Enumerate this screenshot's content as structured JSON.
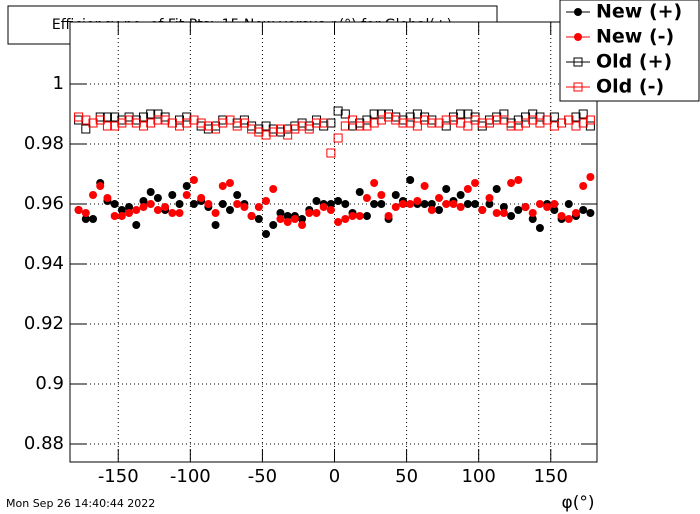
{
  "chart_data": {
    "type": "scatter",
    "title": "Efficiency no. of Fit Pts>15 New versus φ(°) for Global(+)",
    "x_label": "φ(°)",
    "timestamp": "Mon Sep 26 14:40:44 2022",
    "x": [
      -177.5,
      -172.5,
      -167.5,
      -162.5,
      -157.5,
      -152.5,
      -147.5,
      -142.5,
      -137.5,
      -132.5,
      -127.5,
      -122.5,
      -117.5,
      -112.5,
      -107.5,
      -102.5,
      -97.5,
      -92.5,
      -87.5,
      -82.5,
      -77.5,
      -72.5,
      -67.5,
      -62.5,
      -57.5,
      -52.5,
      -47.5,
      -42.5,
      -37.5,
      -32.5,
      -27.5,
      -22.5,
      -17.5,
      -12.5,
      -7.5,
      -2.5,
      2.5,
      7.5,
      12.5,
      17.5,
      22.5,
      27.5,
      32.5,
      37.5,
      42.5,
      47.5,
      52.5,
      57.5,
      62.5,
      67.5,
      72.5,
      77.5,
      82.5,
      87.5,
      92.5,
      97.5,
      102.5,
      107.5,
      112.5,
      117.5,
      122.5,
      127.5,
      132.5,
      137.5,
      142.5,
      147.5,
      152.5,
      157.5,
      162.5,
      167.5,
      172.5,
      177.5
    ],
    "series": [
      {
        "name": "New (+)",
        "color": "#000000",
        "marker": "circle",
        "values": [
          0.958,
          0.955,
          0.955,
          0.967,
          0.961,
          0.96,
          0.958,
          0.959,
          0.953,
          0.961,
          0.964,
          0.962,
          0.958,
          0.963,
          0.96,
          0.966,
          0.96,
          0.961,
          0.959,
          0.953,
          0.96,
          0.958,
          0.963,
          0.96,
          0.956,
          0.955,
          0.95,
          0.953,
          0.957,
          0.956,
          0.956,
          0.955,
          0.958,
          0.961,
          0.96,
          0.96,
          0.961,
          0.96,
          0.957,
          0.964,
          0.956,
          0.96,
          0.96,
          0.955,
          0.963,
          0.961,
          0.968,
          0.96,
          0.96,
          0.96,
          0.958,
          0.965,
          0.961,
          0.963,
          0.96,
          0.96,
          0.958,
          0.96,
          0.965,
          0.959,
          0.956,
          0.958,
          0.959,
          0.955,
          0.952,
          0.96,
          0.958,
          0.955,
          0.96,
          0.956,
          0.958,
          0.957
        ]
      },
      {
        "name": "New (-)",
        "color": "#ff0000",
        "marker": "circle",
        "values": [
          0.958,
          0.957,
          0.963,
          0.966,
          0.962,
          0.956,
          0.956,
          0.957,
          0.958,
          0.959,
          0.96,
          0.958,
          0.959,
          0.957,
          0.957,
          0.963,
          0.968,
          0.962,
          0.96,
          0.957,
          0.966,
          0.967,
          0.96,
          0.959,
          0.956,
          0.959,
          0.961,
          0.965,
          0.955,
          0.954,
          0.955,
          0.953,
          0.957,
          0.957,
          0.959,
          0.958,
          0.954,
          0.955,
          0.956,
          0.956,
          0.962,
          0.967,
          0.963,
          0.956,
          0.959,
          0.96,
          0.96,
          0.961,
          0.966,
          0.958,
          0.962,
          0.96,
          0.96,
          0.959,
          0.965,
          0.967,
          0.958,
          0.962,
          0.957,
          0.957,
          0.967,
          0.968,
          0.959,
          0.957,
          0.96,
          0.959,
          0.96,
          0.956,
          0.955,
          0.957,
          0.966,
          0.969
        ]
      },
      {
        "name": "Old (+)",
        "color": "#000000",
        "marker": "open-square",
        "values": [
          0.988,
          0.985,
          0.987,
          0.989,
          0.989,
          0.989,
          0.988,
          0.989,
          0.988,
          0.989,
          0.99,
          0.99,
          0.989,
          0.987,
          0.988,
          0.989,
          0.988,
          0.986,
          0.985,
          0.986,
          0.988,
          0.988,
          0.987,
          0.988,
          0.986,
          0.985,
          0.986,
          0.985,
          0.984,
          0.985,
          0.986,
          0.987,
          0.986,
          0.988,
          0.986,
          0.987,
          0.991,
          0.99,
          0.986,
          0.987,
          0.988,
          0.99,
          0.99,
          0.99,
          0.989,
          0.988,
          0.989,
          0.99,
          0.989,
          0.988,
          0.987,
          0.986,
          0.989,
          0.99,
          0.99,
          0.989,
          0.986,
          0.988,
          0.989,
          0.99,
          0.987,
          0.988,
          0.989,
          0.99,
          0.989,
          0.988,
          0.989,
          0.987,
          0.988,
          0.989,
          0.99,
          0.986
        ]
      },
      {
        "name": "Old (-)",
        "color": "#ff0000",
        "marker": "open-square",
        "values": [
          0.989,
          0.988,
          0.987,
          0.988,
          0.986,
          0.986,
          0.987,
          0.988,
          0.987,
          0.986,
          0.987,
          0.988,
          0.988,
          0.987,
          0.986,
          0.987,
          0.988,
          0.987,
          0.986,
          0.985,
          0.987,
          0.988,
          0.986,
          0.987,
          0.985,
          0.984,
          0.983,
          0.984,
          0.985,
          0.983,
          0.985,
          0.986,
          0.985,
          0.987,
          0.987,
          0.977,
          0.982,
          0.986,
          0.988,
          0.986,
          0.986,
          0.987,
          0.988,
          0.989,
          0.988,
          0.987,
          0.987,
          0.986,
          0.988,
          0.987,
          0.987,
          0.988,
          0.988,
          0.987,
          0.986,
          0.988,
          0.987,
          0.987,
          0.988,
          0.988,
          0.986,
          0.986,
          0.987,
          0.988,
          0.987,
          0.988,
          0.986,
          0.987,
          0.988,
          0.986,
          0.987,
          0.988
        ]
      }
    ],
    "xlim": [
      -180,
      180
    ],
    "ylim": [
      0.874,
      1.02
    ],
    "xticks": [
      -150,
      -100,
      -50,
      0,
      50,
      100,
      150
    ],
    "yticks": [
      0.88,
      0.9,
      0.92,
      0.94,
      0.96,
      0.98,
      1
    ],
    "grid": true,
    "legend": "top-right"
  }
}
